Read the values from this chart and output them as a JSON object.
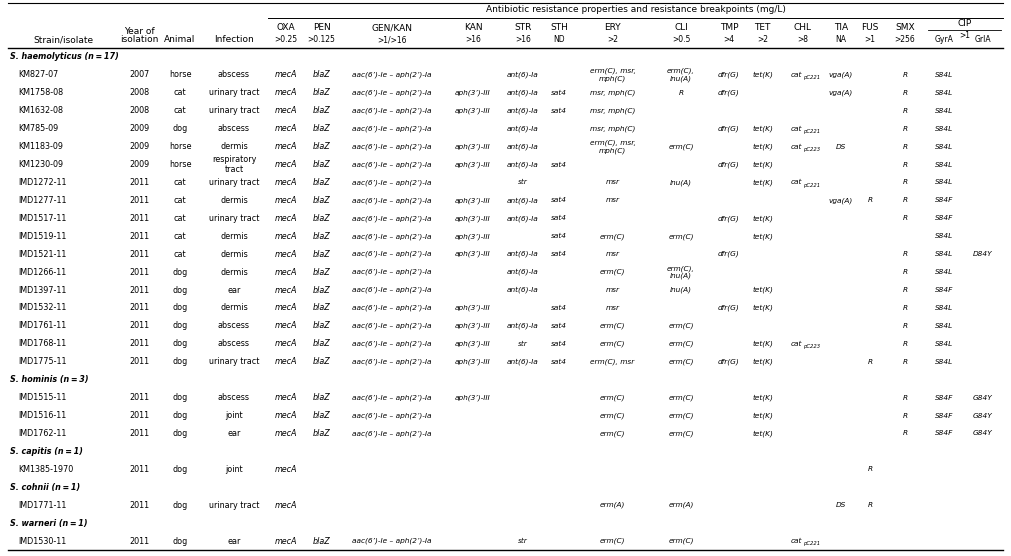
{
  "title": "Antibiotic resistance properties and resistance breakpoints (mg/L)",
  "rows": [
    [
      "S. haemolyticus (n = 17)",
      "",
      "",
      "",
      "",
      "",
      "",
      "",
      "",
      "",
      "",
      "",
      "",
      "",
      "",
      "",
      "",
      "",
      "",
      ""
    ],
    [
      "KM827-07",
      "2007",
      "horse",
      "abscess",
      "mecA",
      "blaZ",
      "aac(6’)-Ie – aph(2’)-Ia",
      "",
      "ant(6)-Ia",
      "",
      "erm(C), msr,\nmph(C)",
      "erm(C),\nlnu(A)",
      "dfr(G)",
      "tet(K)",
      "catpC221",
      "vga(A)",
      "",
      "R",
      "S84L",
      ""
    ],
    [
      "KM1758-08",
      "2008",
      "cat",
      "urinary tract",
      "mecA",
      "blaZ",
      "aac(6’)-Ie – aph(2’)-Ia",
      "aph(3’)-III",
      "ant(6)-Ia",
      "sat4",
      "msr, mph(C)",
      "R",
      "dfr(G)",
      "",
      "",
      "vga(A)",
      "",
      "R",
      "S84L",
      ""
    ],
    [
      "KM1632-08",
      "2008",
      "cat",
      "urinary tract",
      "mecA",
      "blaZ",
      "aac(6’)-Ie – aph(2’)-Ia",
      "aph(3’)-III",
      "ant(6)-Ia",
      "sat4",
      "msr, mph(C)",
      "",
      "",
      "",
      "",
      "",
      "",
      "R",
      "S84L",
      ""
    ],
    [
      "KM785-09",
      "2009",
      "dog",
      "abscess",
      "mecA",
      "blaZ",
      "aac(6’)-Ie – aph(2’)-Ia",
      "",
      "ant(6)-Ia",
      "",
      "msr, mph(C)",
      "",
      "dfr(G)",
      "tet(K)",
      "catpC221",
      "",
      "",
      "R",
      "S84L",
      ""
    ],
    [
      "KM1183-09",
      "2009",
      "horse",
      "dermis",
      "mecA",
      "blaZ",
      "aac(6’)-Ie – aph(2’)-Ia",
      "aph(3’)-III",
      "ant(6)-Ia",
      "",
      "erm(C), msr,\nmph(C)",
      "erm(C)",
      "",
      "tet(K)",
      "catpC223",
      "DS",
      "",
      "R",
      "S84L",
      ""
    ],
    [
      "KM1230-09",
      "2009",
      "horse",
      "respiratory\ntract",
      "mecA",
      "blaZ",
      "aac(6’)-Ie – aph(2’)-Ia",
      "aph(3’)-III",
      "ant(6)-Ia",
      "sat4",
      "",
      "",
      "dfr(G)",
      "tet(K)",
      "",
      "",
      "",
      "R",
      "S84L",
      ""
    ],
    [
      "IMD1272-11",
      "2011",
      "cat",
      "urinary tract",
      "mecA",
      "blaZ",
      "aac(6’)-Ie – aph(2’)-Ia",
      "",
      "str",
      "",
      "msr",
      "lnu(A)",
      "",
      "tet(K)",
      "catpC221",
      "",
      "",
      "R",
      "S84L",
      ""
    ],
    [
      "IMD1277-11",
      "2011",
      "cat",
      "dermis",
      "mecA",
      "blaZ",
      "aac(6’)-Ie – aph(2’)-Ia",
      "aph(3’)-III",
      "ant(6)-Ia",
      "sat4",
      "msr",
      "",
      "",
      "",
      "",
      "vga(A)",
      "R",
      "R",
      "S84F",
      ""
    ],
    [
      "IMD1517-11",
      "2011",
      "cat",
      "urinary tract",
      "mecA",
      "blaZ",
      "aac(6’)-Ie – aph(2’)-Ia",
      "aph(3’)-III",
      "ant(6)-Ia",
      "sat4",
      "",
      "",
      "dfr(G)",
      "tet(K)",
      "",
      "",
      "",
      "R",
      "S84F",
      ""
    ],
    [
      "IMD1519-11",
      "2011",
      "cat",
      "dermis",
      "mecA",
      "blaZ",
      "aac(6’)-Ie – aph(2’)-Ia",
      "aph(3’)-III",
      "",
      "sat4",
      "erm(C)",
      "erm(C)",
      "",
      "tet(K)",
      "",
      "",
      "",
      "",
      "S84L",
      ""
    ],
    [
      "IMD1521-11",
      "2011",
      "cat",
      "dermis",
      "mecA",
      "blaZ",
      "aac(6’)-Ie – aph(2’)-Ia",
      "aph(3’)-III",
      "ant(6)-Ia",
      "sat4",
      "msr",
      "",
      "dfr(G)",
      "",
      "",
      "",
      "",
      "R",
      "S84L",
      "D84Y"
    ],
    [
      "IMD1266-11",
      "2011",
      "dog",
      "dermis",
      "mecA",
      "blaZ",
      "aac(6’)-Ie – aph(2’)-Ia",
      "",
      "ant(6)-Ia",
      "",
      "erm(C)",
      "erm(C),\nlnu(A)",
      "",
      "",
      "",
      "",
      "",
      "R",
      "S84L",
      ""
    ],
    [
      "IMD1397-11",
      "2011",
      "dog",
      "ear",
      "mecA",
      "blaZ",
      "aac(6’)-Ie – aph(2’)-Ia",
      "",
      "ant(6)-Ia",
      "",
      "msr",
      "lnu(A)",
      "",
      "tet(K)",
      "",
      "",
      "",
      "R",
      "S84F",
      ""
    ],
    [
      "IMD1532-11",
      "2011",
      "dog",
      "dermis",
      "mecA",
      "blaZ",
      "aac(6’)-Ie – aph(2’)-Ia",
      "aph(3’)-III",
      "",
      "sat4",
      "msr",
      "",
      "dfr(G)",
      "tet(K)",
      "",
      "",
      "",
      "R",
      "S84L",
      ""
    ],
    [
      "IMD1761-11",
      "2011",
      "dog",
      "abscess",
      "mecA",
      "blaZ",
      "aac(6’)-Ie – aph(2’)-Ia",
      "aph(3’)-III",
      "ant(6)-Ia",
      "sat4",
      "erm(C)",
      "erm(C)",
      "",
      "",
      "",
      "",
      "",
      "R",
      "S84L",
      ""
    ],
    [
      "IMD1768-11",
      "2011",
      "dog",
      "abscess",
      "mecA",
      "blaZ",
      "aac(6’)-Ie – aph(2’)-Ia",
      "aph(3’)-III",
      "str",
      "sat4",
      "erm(C)",
      "erm(C)",
      "",
      "tet(K)",
      "catpC223",
      "",
      "",
      "R",
      "S84L",
      ""
    ],
    [
      "IMD1775-11",
      "2011",
      "dog",
      "urinary tract",
      "mecA",
      "blaZ",
      "aac(6’)-Ie – aph(2’)-Ia",
      "aph(3’)-III",
      "ant(6)-Ia",
      "sat4",
      "erm(C), msr",
      "erm(C)",
      "dfr(G)",
      "tet(K)",
      "",
      "",
      "R",
      "R",
      "S84L",
      ""
    ],
    [
      "S. hominis (n = 3)",
      "",
      "",
      "",
      "",
      "",
      "",
      "",
      "",
      "",
      "",
      "",
      "",
      "",
      "",
      "",
      "",
      "",
      "",
      ""
    ],
    [
      "IMD1515-11",
      "2011",
      "dog",
      "abscess",
      "mecA",
      "blaZ",
      "aac(6’)-Ie – aph(2’)-Ia",
      "aph(3’)-III",
      "",
      "",
      "erm(C)",
      "erm(C)",
      "",
      "tet(K)",
      "",
      "",
      "",
      "R",
      "S84F",
      "G84Y"
    ],
    [
      "IMD1516-11",
      "2011",
      "dog",
      "joint",
      "mecA",
      "blaZ",
      "aac(6’)-Ie – aph(2’)-Ia",
      "",
      "",
      "",
      "erm(C)",
      "erm(C)",
      "",
      "tet(K)",
      "",
      "",
      "",
      "R",
      "S84F",
      "G84Y"
    ],
    [
      "IMD1762-11",
      "2011",
      "dog",
      "ear",
      "mecA",
      "blaZ",
      "aac(6’)-Ie – aph(2’)-Ia",
      "",
      "",
      "",
      "erm(C)",
      "erm(C)",
      "",
      "tet(K)",
      "",
      "",
      "",
      "R",
      "S84F",
      "G84Y"
    ],
    [
      "S. capitis (n = 1)",
      "",
      "",
      "",
      "",
      "",
      "",
      "",
      "",
      "",
      "",
      "",
      "",
      "",
      "",
      "",
      "",
      "",
      "",
      ""
    ],
    [
      "KM1385-1970",
      "2011",
      "dog",
      "joint",
      "mecA",
      "",
      "",
      "",
      "",
      "",
      "",
      "",
      "",
      "",
      "",
      "",
      "R",
      "",
      "",
      ""
    ],
    [
      "S. cohnii (n = 1)",
      "",
      "",
      "",
      "",
      "",
      "",
      "",
      "",
      "",
      "",
      "",
      "",
      "",
      "",
      "",
      "",
      "",
      "",
      ""
    ],
    [
      "IMD1771-11",
      "2011",
      "dog",
      "urinary tract",
      "mecA",
      "",
      "",
      "",
      "",
      "",
      "erm(A)",
      "erm(A)",
      "",
      "",
      "",
      "DS",
      "R",
      "",
      "",
      ""
    ],
    [
      "S. warneri (n = 1)",
      "",
      "",
      "",
      "",
      "",
      "",
      "",
      "",
      "",
      "",
      "",
      "",
      "",
      "",
      "",
      "",
      "",
      "",
      ""
    ],
    [
      "IMD1530-11",
      "2011",
      "dog",
      "ear",
      "mecA",
      "blaZ",
      "aac(6’)-Ie – aph(2’)-Ia",
      "",
      "str",
      "",
      "erm(C)",
      "erm(C)",
      "",
      "",
      "catpC221",
      "",
      "",
      "",
      "",
      ""
    ]
  ],
  "section_rows": [
    0,
    18,
    22,
    24,
    26
  ],
  "background_color": "#ffffff",
  "font_size": 5.8,
  "header_font_size": 6.5
}
